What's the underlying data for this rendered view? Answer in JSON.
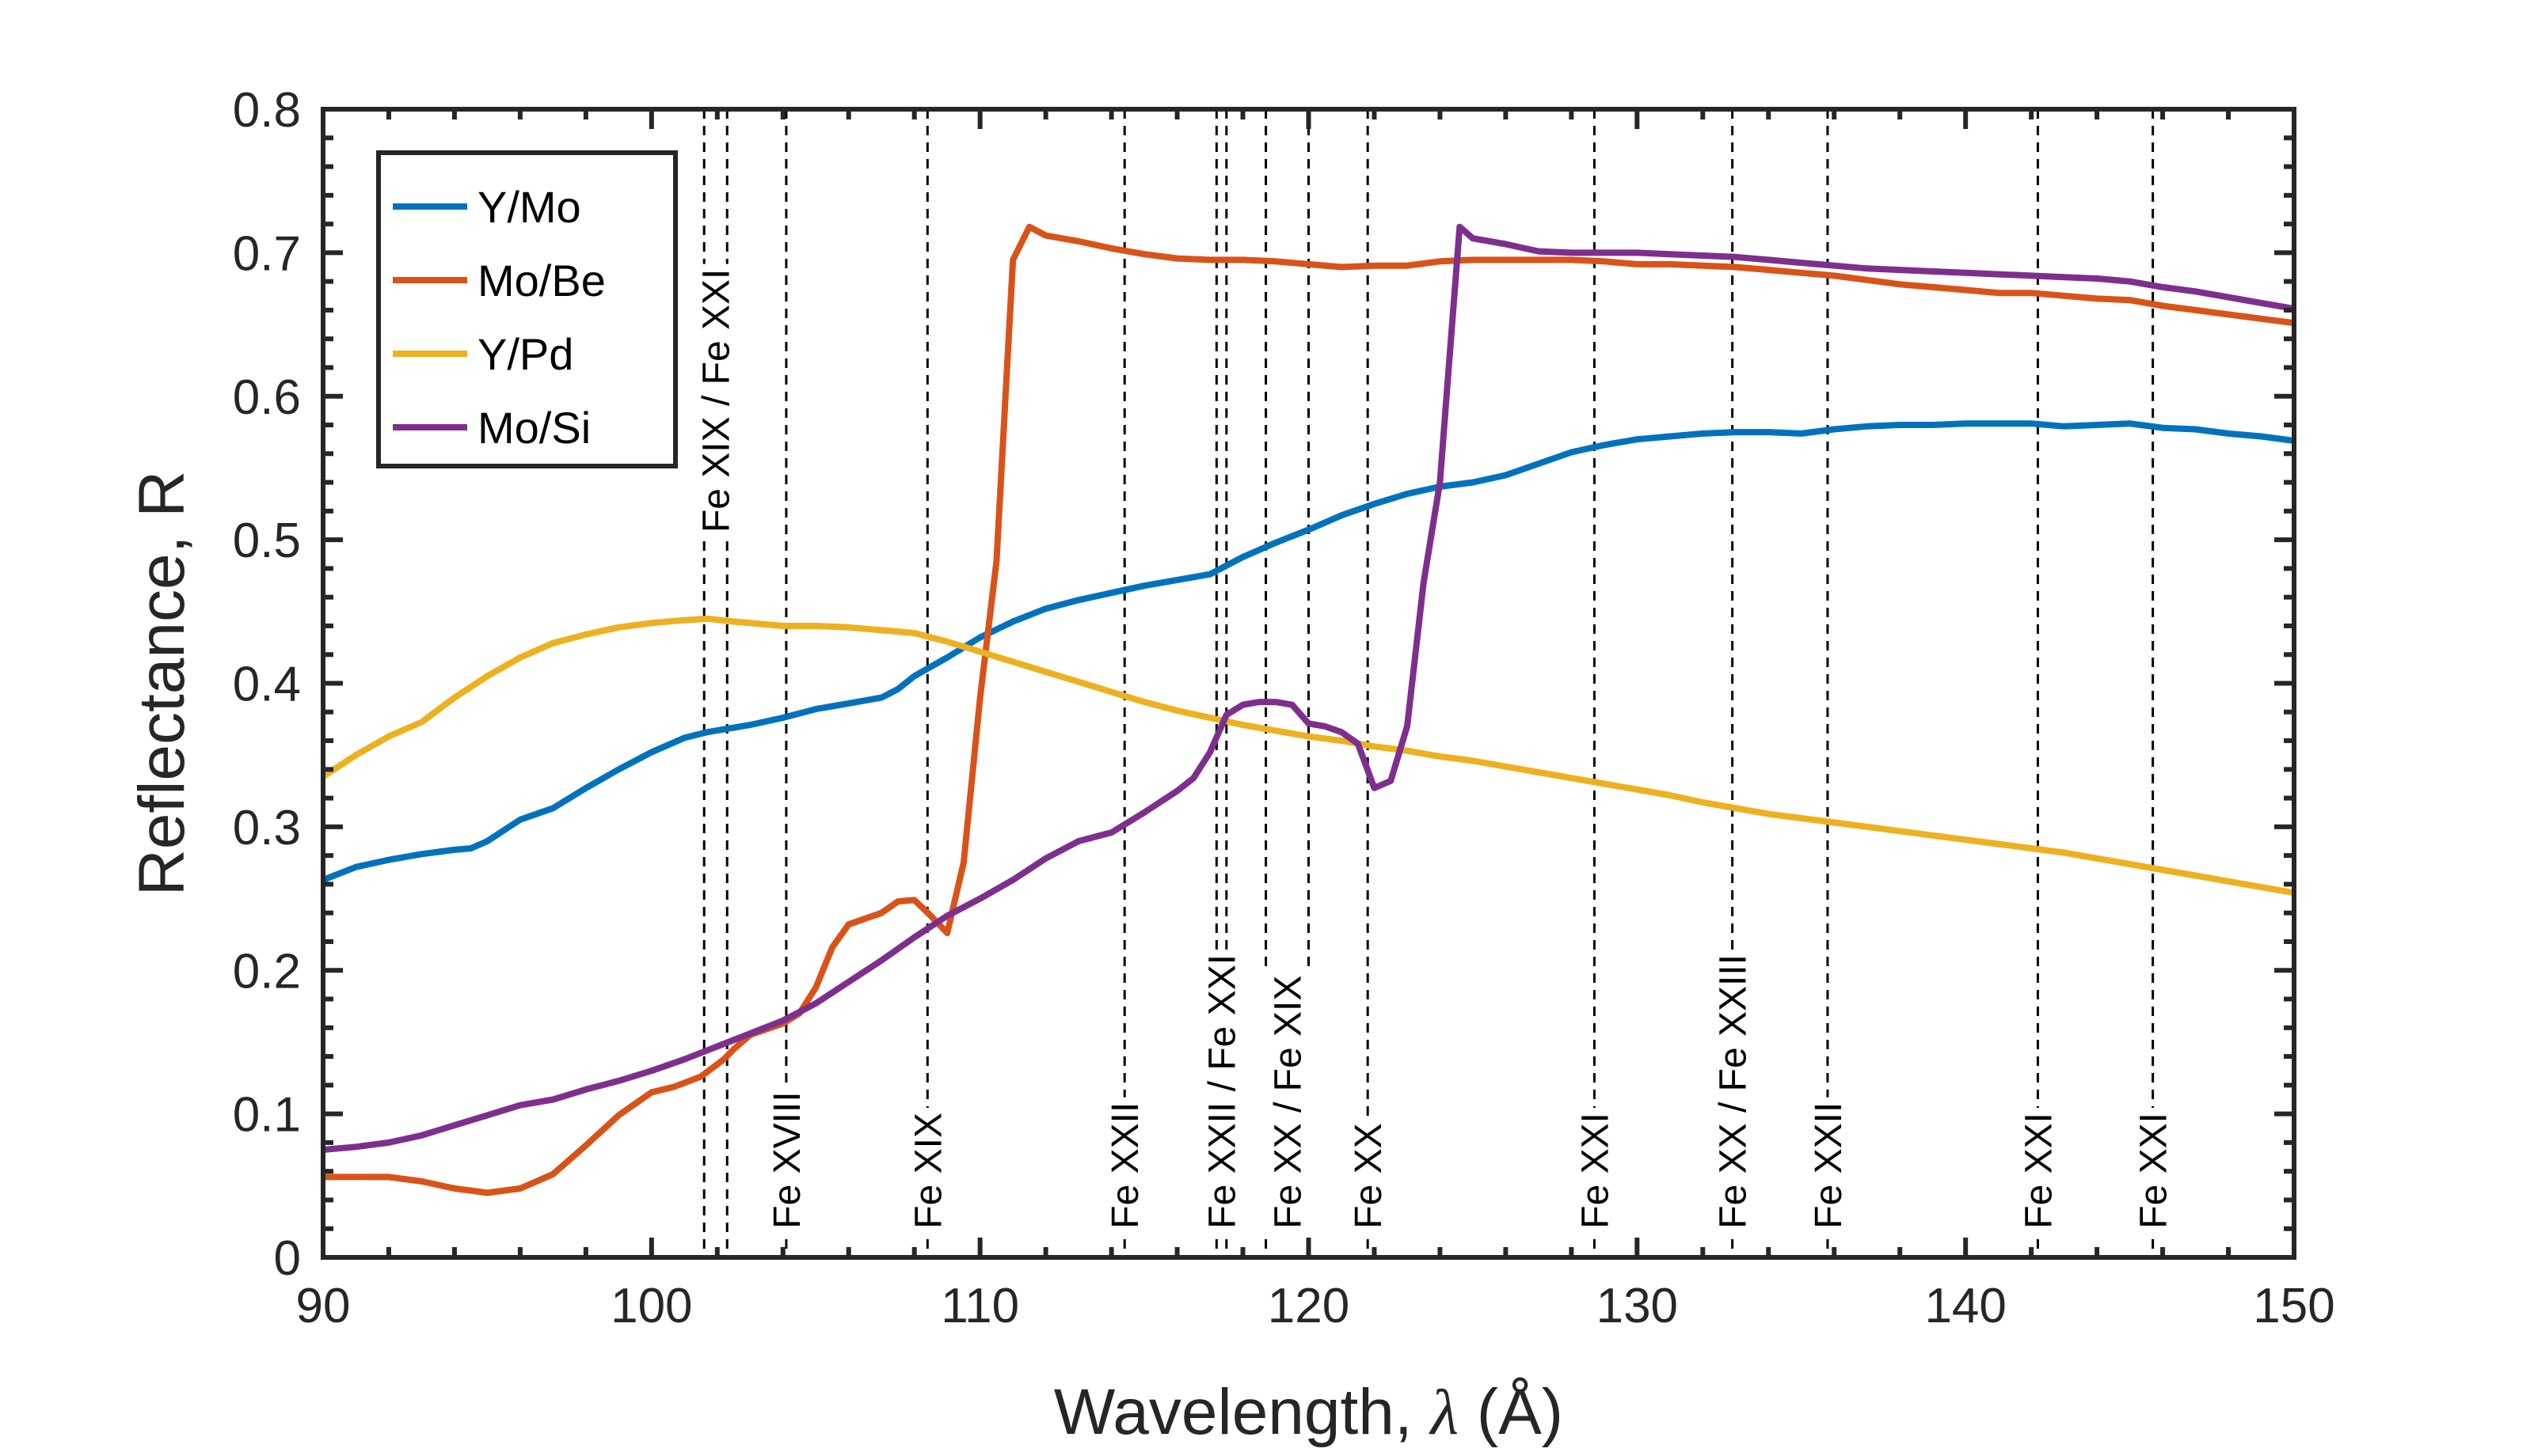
{
  "chart_data": {
    "type": "line",
    "title": "",
    "xlabel": "Wavelength, λ (Å)",
    "xlabel_parts": {
      "text": "Wavelength, ",
      "symbol": "λ",
      "unit": " (Å)"
    },
    "ylabel": "Reflectance, R",
    "xlim": [
      90,
      150
    ],
    "ylim": [
      0,
      0.8
    ],
    "xticks": [
      90,
      100,
      110,
      120,
      130,
      140,
      150
    ],
    "xtick_labels": [
      "90",
      "100",
      "110",
      "120",
      "130",
      "140",
      "150"
    ],
    "xminor_step": 2,
    "yticks": [
      0,
      0.1,
      0.2,
      0.3,
      0.4,
      0.5,
      0.6,
      0.7,
      0.8
    ],
    "ytick_labels": [
      "0",
      "0.1",
      "0.2",
      "0.3",
      "0.4",
      "0.5",
      "0.6",
      "0.7",
      "0.8"
    ],
    "yminor_step": 0.02,
    "grid": false,
    "box": true,
    "legend": {
      "position": "top-left",
      "entries": [
        "Y/Mo",
        "Mo/Be",
        "Y/Pd",
        "Mo/Si"
      ]
    },
    "series": [
      {
        "name": "Y/Mo",
        "color": "#0072BD",
        "x": [
          90,
          91,
          92,
          93,
          94,
          94.5,
          95,
          96,
          97,
          98,
          99,
          100,
          101,
          101.7,
          103,
          104,
          105,
          106,
          107,
          107.5,
          108,
          109,
          110,
          111,
          112,
          113,
          114,
          115,
          116,
          117,
          118,
          119,
          120,
          121,
          122,
          123,
          124,
          125,
          126,
          127,
          128,
          129,
          130,
          131,
          132,
          133,
          134,
          135,
          136,
          137,
          138,
          139,
          140,
          141,
          142,
          143,
          144,
          145,
          146,
          147,
          148,
          149,
          150
        ],
        "y": [
          0.263,
          0.272,
          0.277,
          0.281,
          0.284,
          0.285,
          0.29,
          0.305,
          0.313,
          0.327,
          0.34,
          0.352,
          0.362,
          0.366,
          0.371,
          0.376,
          0.382,
          0.386,
          0.39,
          0.396,
          0.405,
          0.418,
          0.432,
          0.443,
          0.452,
          0.458,
          0.463,
          0.468,
          0.472,
          0.476,
          0.488,
          0.498,
          0.507,
          0.517,
          0.525,
          0.532,
          0.537,
          0.54,
          0.545,
          0.553,
          0.561,
          0.566,
          0.57,
          0.572,
          0.574,
          0.575,
          0.575,
          0.574,
          0.577,
          0.579,
          0.58,
          0.58,
          0.581,
          0.581,
          0.581,
          0.579,
          0.58,
          0.581,
          0.578,
          0.577,
          0.574,
          0.572,
          0.569
        ]
      },
      {
        "name": "Mo/Be",
        "color": "#D95319",
        "x": [
          90,
          91,
          92,
          93,
          94,
          95,
          96,
          97,
          98,
          99,
          100,
          100.7,
          101.5,
          102.2,
          102.5,
          103,
          104,
          104.5,
          105,
          105.5,
          106,
          107,
          107.5,
          108,
          108.5,
          109,
          109.5,
          110,
          110.5,
          111,
          111.5,
          112,
          113,
          114,
          115,
          116,
          117,
          118,
          119,
          120,
          121,
          122,
          123,
          124,
          125,
          126,
          127,
          128,
          129,
          130,
          131,
          132,
          133,
          134,
          135,
          136,
          137,
          138,
          139,
          140,
          141,
          142,
          143,
          144,
          145,
          146,
          147,
          148,
          149,
          150
        ],
        "y": [
          0.056,
          0.056,
          0.056,
          0.053,
          0.048,
          0.045,
          0.048,
          0.058,
          0.078,
          0.099,
          0.115,
          0.119,
          0.126,
          0.138,
          0.145,
          0.155,
          0.163,
          0.17,
          0.188,
          0.216,
          0.232,
          0.24,
          0.248,
          0.249,
          0.238,
          0.226,
          0.275,
          0.39,
          0.485,
          0.695,
          0.718,
          0.712,
          0.708,
          0.703,
          0.699,
          0.696,
          0.695,
          0.695,
          0.694,
          0.692,
          0.69,
          0.691,
          0.691,
          0.694,
          0.695,
          0.695,
          0.695,
          0.695,
          0.694,
          0.692,
          0.692,
          0.691,
          0.69,
          0.688,
          0.686,
          0.684,
          0.681,
          0.678,
          0.676,
          0.674,
          0.672,
          0.672,
          0.67,
          0.668,
          0.667,
          0.663,
          0.66,
          0.657,
          0.654,
          0.651
        ]
      },
      {
        "name": "Y/Pd",
        "color": "#EDB120",
        "x": [
          90,
          91,
          92,
          93,
          94,
          95,
          96,
          97,
          98,
          99,
          100,
          101,
          101.7,
          102.5,
          104,
          105,
          106,
          107,
          108,
          109,
          110,
          111,
          112,
          113,
          114,
          115,
          116,
          117,
          118,
          119,
          120,
          121,
          122,
          123,
          124,
          125,
          126,
          127,
          128,
          129,
          130,
          131,
          132,
          133,
          134,
          135,
          136,
          137,
          138,
          139,
          140,
          141,
          142,
          143,
          144,
          145,
          146,
          147,
          148,
          149,
          150
        ],
        "y": [
          0.335,
          0.35,
          0.363,
          0.373,
          0.39,
          0.405,
          0.418,
          0.428,
          0.434,
          0.439,
          0.442,
          0.444,
          0.445,
          0.443,
          0.44,
          0.44,
          0.439,
          0.437,
          0.435,
          0.429,
          0.422,
          0.415,
          0.408,
          0.401,
          0.394,
          0.387,
          0.381,
          0.376,
          0.371,
          0.367,
          0.363,
          0.36,
          0.356,
          0.353,
          0.349,
          0.346,
          0.342,
          0.338,
          0.334,
          0.33,
          0.326,
          0.322,
          0.317,
          0.313,
          0.309,
          0.306,
          0.303,
          0.3,
          0.297,
          0.294,
          0.291,
          0.288,
          0.285,
          0.282,
          0.278,
          0.274,
          0.27,
          0.266,
          0.262,
          0.258,
          0.254
        ]
      },
      {
        "name": "Mo/Si",
        "color": "#7E2F8E",
        "x": [
          90,
          91,
          92,
          93,
          94,
          95,
          96,
          97,
          98,
          99,
          100,
          101,
          102,
          103,
          104,
          105,
          106,
          107,
          108,
          109,
          110,
          111,
          112,
          113,
          114,
          115,
          116,
          116.5,
          117,
          117.5,
          118,
          118.5,
          119,
          119.5,
          120,
          120.5,
          121,
          121.5,
          122,
          122.5,
          123,
          123.5,
          124,
          124.2,
          124.6,
          125,
          126,
          127,
          128,
          129,
          130,
          131,
          132,
          133,
          134,
          135,
          136,
          137,
          138,
          139,
          140,
          141,
          142,
          143,
          144,
          145,
          146,
          147,
          148,
          149,
          150
        ],
        "y": [
          0.075,
          0.077,
          0.08,
          0.085,
          0.092,
          0.099,
          0.106,
          0.11,
          0.117,
          0.123,
          0.13,
          0.138,
          0.147,
          0.156,
          0.165,
          0.177,
          0.192,
          0.207,
          0.223,
          0.238,
          0.25,
          0.263,
          0.278,
          0.29,
          0.296,
          0.31,
          0.325,
          0.334,
          0.352,
          0.378,
          0.385,
          0.387,
          0.387,
          0.385,
          0.372,
          0.37,
          0.366,
          0.358,
          0.327,
          0.332,
          0.37,
          0.47,
          0.54,
          0.6,
          0.718,
          0.71,
          0.706,
          0.701,
          0.7,
          0.7,
          0.7,
          0.699,
          0.698,
          0.697,
          0.695,
          0.693,
          0.691,
          0.689,
          0.688,
          0.687,
          0.686,
          0.685,
          0.684,
          0.683,
          0.682,
          0.68,
          0.676,
          0.673,
          0.669,
          0.665,
          0.661
        ]
      }
    ],
    "reference_lines": [
      {
        "x": 101.6
      },
      {
        "x": 102.3
      },
      {
        "x": 104.1
      },
      {
        "x": 108.4
      },
      {
        "x": 114.4
      },
      {
        "x": 117.2
      },
      {
        "x": 117.5
      },
      {
        "x": 118.7
      },
      {
        "x": 120.0
      },
      {
        "x": 121.8
      },
      {
        "x": 128.7
      },
      {
        "x": 132.9
      },
      {
        "x": 135.8
      },
      {
        "x": 142.2
      },
      {
        "x": 145.7
      }
    ],
    "annotations": [
      {
        "text": "Fe XIX / Fe XXI",
        "x": 101.95,
        "y_bottom": 0.505
      },
      {
        "text": "Fe XVIII",
        "x": 104.1,
        "y_bottom": 0.02
      },
      {
        "text": "Fe XIX",
        "x": 108.4,
        "y_bottom": 0.02
      },
      {
        "text": "Fe XXII",
        "x": 114.4,
        "y_bottom": 0.02
      },
      {
        "text": "Fe XXII / Fe XXI",
        "x": 117.35,
        "y_bottom": 0.02
      },
      {
        "text": "Fe XX / Fe XIX",
        "x": 119.35,
        "y_bottom": 0.02
      },
      {
        "text": "Fe XX",
        "x": 121.8,
        "y_bottom": 0.02
      },
      {
        "text": "Fe XXI",
        "x": 128.7,
        "y_bottom": 0.02
      },
      {
        "text": "Fe XX / Fe XXIII",
        "x": 132.9,
        "y_bottom": 0.02
      },
      {
        "text": "Fe XXII",
        "x": 135.8,
        "y_bottom": 0.02
      },
      {
        "text": "Fe XXI",
        "x": 142.2,
        "y_bottom": 0.02
      },
      {
        "text": "Fe XXI",
        "x": 145.7,
        "y_bottom": 0.02
      }
    ]
  }
}
